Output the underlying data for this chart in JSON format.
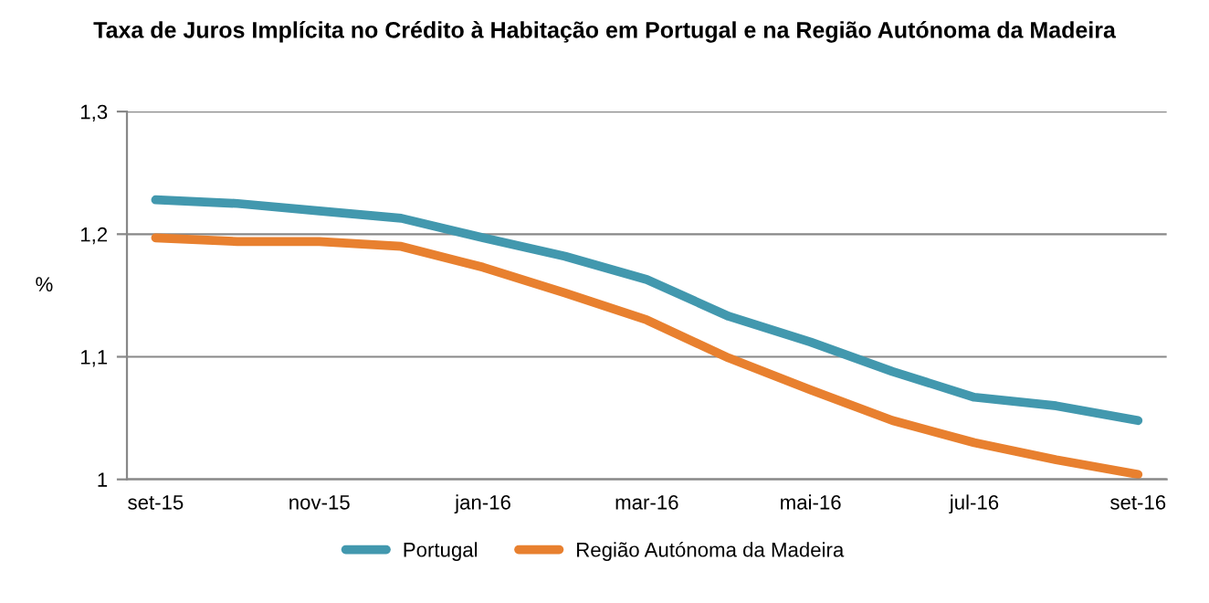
{
  "chart_data": {
    "type": "line",
    "title": "Taxa de Juros Implícita no Crédito à Habitação em Portugal e na Região Autónoma da Madeira",
    "ylabel": "%",
    "categories": [
      "set-15",
      null,
      "nov-15",
      null,
      "jan-16",
      null,
      "mar-16",
      null,
      "mai-16",
      null,
      "jul-16",
      null,
      "set-16"
    ],
    "series": [
      {
        "name": "Portugal",
        "color": "#4298ae",
        "values": [
          1.228,
          1.225,
          1.219,
          1.213,
          1.197,
          1.182,
          1.163,
          1.133,
          1.112,
          1.088,
          1.067,
          1.06,
          1.048
        ]
      },
      {
        "name": "Região Autónoma da Madeira",
        "color": "#e8802f",
        "values": [
          1.197,
          1.194,
          1.194,
          1.19,
          1.173,
          1.152,
          1.13,
          1.099,
          1.073,
          1.048,
          1.03,
          1.016,
          1.004
        ]
      }
    ],
    "ylim": [
      1,
      1.3
    ],
    "yticks": [
      {
        "value": 1,
        "label": "1"
      },
      {
        "value": 1.1,
        "label": "1,1"
      },
      {
        "value": 1.2,
        "label": "1,2"
      },
      {
        "value": 1.3,
        "label": "1,3"
      }
    ],
    "grid": "y",
    "legend": "bottom",
    "marker": "none",
    "line_style": "solid"
  }
}
